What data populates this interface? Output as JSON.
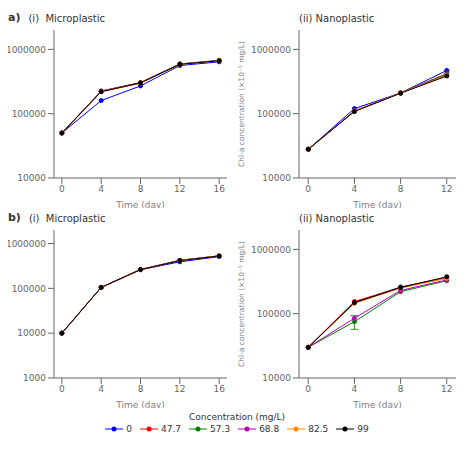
{
  "legend_title": "Concentration (mg/L)",
  "legend": "bottom",
  "chart_data": [
    {
      "type": "line",
      "title": "(i)  Microplastic",
      "annotations": [
        "a)"
      ],
      "xlabel": "Time (day)",
      "log": "y",
      "grid": false,
      "marker": "circle",
      "x": [
        0,
        4,
        8,
        12,
        16
      ],
      "xlim": [
        -0.8,
        16.8
      ],
      "xticks": [
        0,
        4,
        8,
        12,
        16
      ],
      "ylim": [
        10000,
        2000000
      ],
      "yticks": [
        10000,
        100000,
        1000000
      ],
      "series": [
        {
          "name": "0",
          "color": "#0000FF",
          "values": [
            50000,
            160000,
            270000,
            560000,
            640000
          ]
        },
        {
          "name": "47.7",
          "color": "#FF0000",
          "values": [
            50000,
            220000,
            300000,
            590000,
            670000
          ]
        },
        {
          "name": "57.3",
          "color": "#008000",
          "values": [
            50000,
            225000,
            305000,
            595000,
            675000
          ]
        },
        {
          "name": "68.8",
          "color": "#BB00BB",
          "values": [
            50000,
            225000,
            305000,
            590000,
            670000
          ]
        },
        {
          "name": "82.5",
          "color": "#FF8C00",
          "values": [
            50000,
            220000,
            300000,
            585000,
            665000
          ]
        },
        {
          "name": "99",
          "color": "#000000",
          "values": [
            50000,
            220000,
            300000,
            585000,
            665000
          ]
        }
      ]
    },
    {
      "type": "line",
      "title": "(ii) Nanoplastic",
      "xlabel": "Time (day)",
      "ylabel": "Chl-a concentration (×10⁻⁵ mg/L)",
      "log": "y",
      "grid": false,
      "marker": "circle",
      "x": [
        0,
        4,
        8,
        12
      ],
      "xlim": [
        -0.8,
        12.8
      ],
      "xticks": [
        0,
        4,
        8,
        12
      ],
      "ylim": [
        10000,
        2000000
      ],
      "yticks": [
        10000,
        100000,
        1000000
      ],
      "series": [
        {
          "name": "0",
          "color": "#0000FF",
          "values": [
            28000,
            120000,
            210000,
            470000
          ]
        },
        {
          "name": "47.7",
          "color": "#FF0000",
          "values": [
            28000,
            110000,
            210000,
            420000
          ]
        },
        {
          "name": "57.3",
          "color": "#008000",
          "values": [
            28000,
            110000,
            210000,
            415000
          ]
        },
        {
          "name": "68.8",
          "color": "#BB00BB",
          "values": [
            28000,
            110000,
            210000,
            400000
          ]
        },
        {
          "name": "82.5",
          "color": "#FF8C00",
          "values": [
            28000,
            110000,
            210000,
            395000
          ]
        },
        {
          "name": "99",
          "color": "#000000",
          "values": [
            28000,
            108000,
            208000,
            385000
          ]
        }
      ]
    },
    {
      "type": "line",
      "title": "(i)  Microplastic",
      "annotations": [
        "b)"
      ],
      "xlabel": "Time (day)",
      "log": "y",
      "grid": false,
      "marker": "circle",
      "x": [
        0,
        4,
        8,
        12,
        16
      ],
      "xlim": [
        -0.8,
        16.8
      ],
      "xticks": [
        0,
        4,
        8,
        12,
        16
      ],
      "ylim": [
        1000,
        2000000
      ],
      "yticks": [
        1000,
        10000,
        100000,
        1000000
      ],
      "series": [
        {
          "name": "0",
          "color": "#0000FF",
          "values": [
            10000,
            105000,
            260000,
            390000,
            510000
          ]
        },
        {
          "name": "47.7",
          "color": "#FF0000",
          "values": [
            10000,
            105000,
            262000,
            420000,
            530000
          ]
        },
        {
          "name": "57.3",
          "color": "#008000",
          "values": [
            10000,
            105000,
            262000,
            420000,
            530000
          ]
        },
        {
          "name": "68.8",
          "color": "#BB00BB",
          "values": [
            10000,
            105000,
            262000,
            420000,
            530000
          ]
        },
        {
          "name": "82.5",
          "color": "#FF8C00",
          "values": [
            10000,
            105000,
            262000,
            420000,
            530000
          ]
        },
        {
          "name": "99",
          "color": "#000000",
          "values": [
            10000,
            105000,
            262000,
            415000,
            525000
          ]
        }
      ]
    },
    {
      "type": "line",
      "title": "(ii) Nanoplastic",
      "xlabel": "Time (day)",
      "ylabel": "Chl-a concentration (×10⁻⁵ mg/L)",
      "log": "y",
      "grid": false,
      "marker": "circle",
      "x": [
        0,
        4,
        8,
        12
      ],
      "xlim": [
        -0.8,
        12.8
      ],
      "xticks": [
        0,
        4,
        8,
        12
      ],
      "ylim": [
        10000,
        2000000
      ],
      "yticks": [
        10000,
        100000,
        1000000
      ],
      "series": [
        {
          "name": "0",
          "color": "#0000FF",
          "values": [
            30000,
            150000,
            260000,
            360000
          ]
        },
        {
          "name": "47.7",
          "color": "#FF0000",
          "values": [
            30000,
            155000,
            255000,
            365000
          ]
        },
        {
          "name": "57.3",
          "color": "#008000",
          "values": [
            30000,
            75000,
            220000,
            325000
          ],
          "yerr": [
            0,
            18000,
            0,
            0
          ]
        },
        {
          "name": "68.8",
          "color": "#BB00BB",
          "values": [
            30000,
            85000,
            230000,
            335000
          ]
        },
        {
          "name": "82.5",
          "color": "#FF8C00",
          "values": [
            30000,
            145000,
            250000,
            355000
          ]
        },
        {
          "name": "99",
          "color": "#000000",
          "values": [
            30000,
            148000,
            255000,
            375000
          ]
        }
      ]
    }
  ]
}
